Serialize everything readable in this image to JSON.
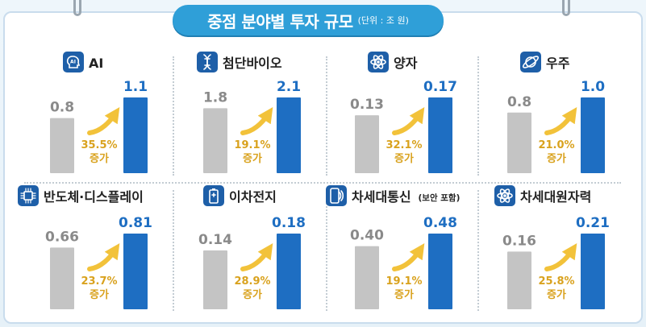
{
  "title": "중점 분야별 투자 규모",
  "unit": "(단위 : 조 원)",
  "colors": {
    "accent": "#1e6ec2",
    "prev_bar": "#c4c4c4",
    "growth": "#d9a21e",
    "title_bg": "#2f9fd8"
  },
  "chart_data": [
    {
      "type": "bar",
      "title": "AI",
      "icon": "ai-head-icon",
      "categories": [
        "before",
        "after"
      ],
      "values": [
        0.8,
        1.1
      ],
      "labels": [
        "0.8",
        "1.1"
      ],
      "growth_pct": "35.5%",
      "growth_word": "증가"
    },
    {
      "type": "bar",
      "title": "첨단바이오",
      "icon": "dna-icon",
      "categories": [
        "before",
        "after"
      ],
      "values": [
        1.8,
        2.1
      ],
      "labels": [
        "1.8",
        "2.1"
      ],
      "growth_pct": "19.1%",
      "growth_word": "증가"
    },
    {
      "type": "bar",
      "title": "양자",
      "icon": "atom-icon",
      "categories": [
        "before",
        "after"
      ],
      "values": [
        0.13,
        0.17
      ],
      "labels": [
        "0.13",
        "0.17"
      ],
      "growth_pct": "32.1%",
      "growth_word": "증가"
    },
    {
      "type": "bar",
      "title": "우주",
      "icon": "planet-icon",
      "categories": [
        "before",
        "after"
      ],
      "values": [
        0.8,
        1.0
      ],
      "labels": [
        "0.8",
        "1.0"
      ],
      "growth_pct": "21.0%",
      "growth_word": "증가"
    },
    {
      "type": "bar",
      "title": "반도체·디스플레이",
      "icon": "chip-icon",
      "categories": [
        "before",
        "after"
      ],
      "values": [
        0.66,
        0.81
      ],
      "labels": [
        "0.66",
        "0.81"
      ],
      "growth_pct": "23.7%",
      "growth_word": "증가"
    },
    {
      "type": "bar",
      "title": "이차전지",
      "icon": "battery-icon",
      "categories": [
        "before",
        "after"
      ],
      "values": [
        0.14,
        0.18
      ],
      "labels": [
        "0.14",
        "0.18"
      ],
      "growth_pct": "28.9%",
      "growth_word": "증가"
    },
    {
      "type": "bar",
      "title": "차세대통신",
      "subtitle": "(보안 포함)",
      "icon": "wireless-phone-icon",
      "categories": [
        "before",
        "after"
      ],
      "values": [
        0.4,
        0.48
      ],
      "labels": [
        "0.40",
        "0.48"
      ],
      "growth_pct": "19.1%",
      "growth_word": "증가"
    },
    {
      "type": "bar",
      "title": "차세대원자력",
      "icon": "nuclear-atom-icon",
      "categories": [
        "before",
        "after"
      ],
      "values": [
        0.16,
        0.21
      ],
      "labels": [
        "0.16",
        "0.21"
      ],
      "growth_pct": "25.8%",
      "growth_word": "증가"
    }
  ]
}
